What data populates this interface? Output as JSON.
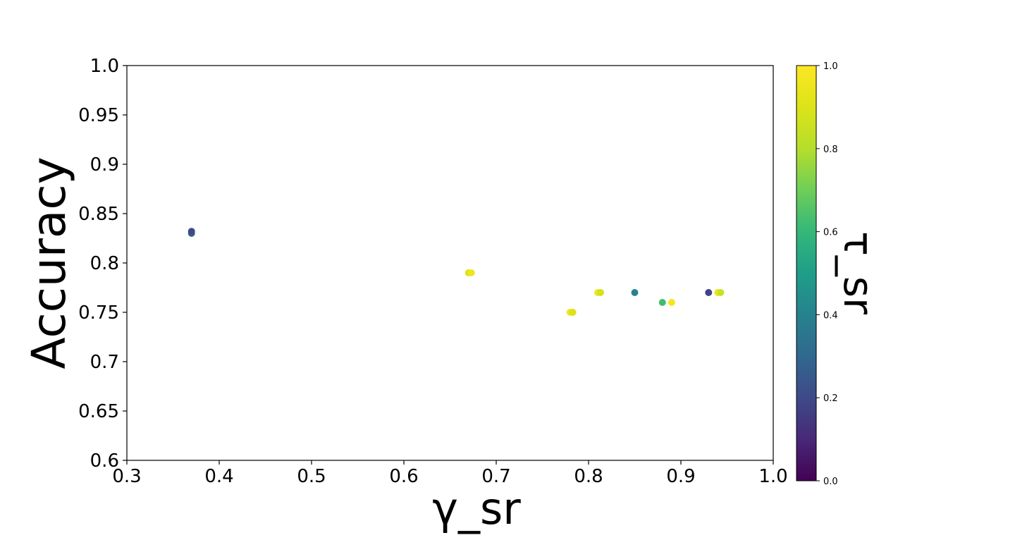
{
  "chart_data": {
    "type": "scatter",
    "title": "",
    "xlabel": "γ_sr",
    "ylabel": "Accuracy",
    "colorbar_label": "τ_sr",
    "xlim": [
      0.3,
      1.0
    ],
    "ylim": [
      0.6,
      1.0
    ],
    "x_ticks": [
      0.3,
      0.4,
      0.5,
      0.6,
      0.7,
      0.8,
      0.9,
      1.0
    ],
    "x_tick_labels": [
      "0.3",
      "0.4",
      "0.5",
      "0.6",
      "0.7",
      "0.8",
      "0.9",
      "1.0"
    ],
    "y_ticks": [
      0.6,
      0.65,
      0.7,
      0.75,
      0.8,
      0.85,
      0.9,
      0.95,
      1.0
    ],
    "y_tick_labels": [
      "0.6",
      "0.65",
      "0.7",
      "0.75",
      "0.8",
      "0.85",
      "0.9",
      "0.95",
      "1.0"
    ],
    "colorbar_range": [
      0.0,
      1.0
    ],
    "colorbar_ticks": [
      0.0,
      0.2,
      0.4,
      0.6,
      0.8,
      1.0
    ],
    "colorbar_tick_labels": [
      "0.0",
      "0.2",
      "0.4",
      "0.6",
      "0.8",
      "1.0"
    ],
    "colormap": "viridis",
    "grid": false,
    "points": [
      {
        "x": 0.37,
        "y": 0.83,
        "c": 0.3
      },
      {
        "x": 0.37,
        "y": 0.832,
        "c": 0.2
      },
      {
        "x": 0.67,
        "y": 0.79,
        "c": 0.9
      },
      {
        "x": 0.673,
        "y": 0.79,
        "c": 0.95
      },
      {
        "x": 0.78,
        "y": 0.75,
        "c": 0.95
      },
      {
        "x": 0.783,
        "y": 0.75,
        "c": 0.9
      },
      {
        "x": 0.81,
        "y": 0.77,
        "c": 0.95
      },
      {
        "x": 0.813,
        "y": 0.77,
        "c": 0.88
      },
      {
        "x": 0.85,
        "y": 0.77,
        "c": 0.4
      },
      {
        "x": 0.88,
        "y": 0.76,
        "c": 0.62
      },
      {
        "x": 0.89,
        "y": 0.76,
        "c": 0.97
      },
      {
        "x": 0.93,
        "y": 0.77,
        "c": 0.18
      },
      {
        "x": 0.94,
        "y": 0.77,
        "c": 0.95
      },
      {
        "x": 0.943,
        "y": 0.77,
        "c": 0.85
      }
    ]
  }
}
